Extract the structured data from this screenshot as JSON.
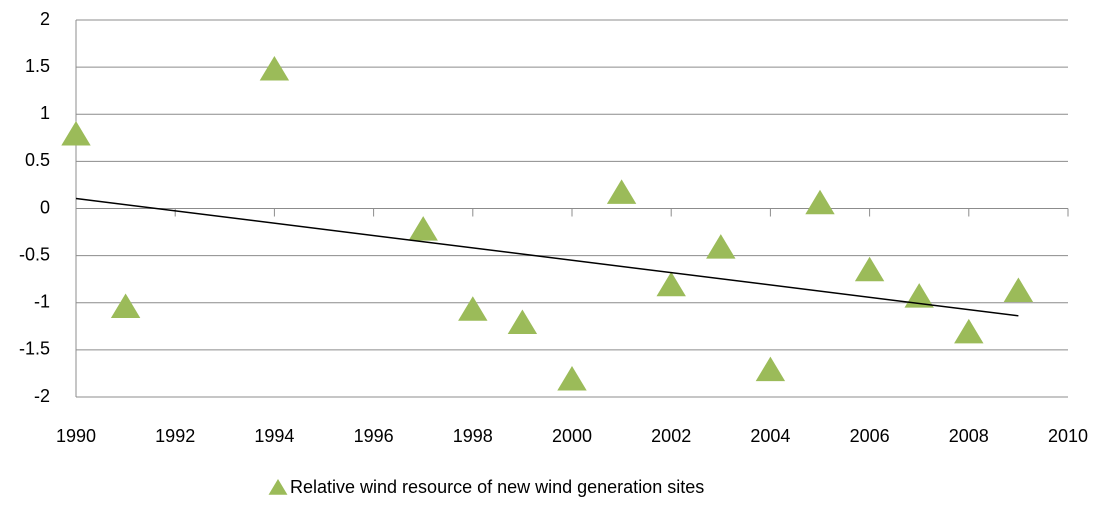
{
  "chart_data": {
    "type": "scatter",
    "x": [
      1990,
      1991,
      1994,
      1997,
      1998,
      1999,
      2000,
      2001,
      2002,
      2003,
      2004,
      2005,
      2006,
      2007,
      2008,
      2009
    ],
    "series": [
      {
        "name": "Relative wind resource of new wind generation sites",
        "color": "#9bbb59",
        "values": [
          0.78,
          -1.05,
          1.47,
          -0.23,
          -1.08,
          -1.22,
          -1.82,
          0.16,
          -0.82,
          -0.42,
          -1.72,
          0.05,
          -0.66,
          -0.94,
          -1.32,
          -0.88
        ]
      }
    ],
    "xlim": [
      1990,
      2010
    ],
    "xticks": [
      1990,
      1992,
      1994,
      1996,
      1998,
      2000,
      2002,
      2004,
      2006,
      2008,
      2010
    ],
    "ylim": [
      -2,
      2
    ],
    "yticks": [
      -2,
      -1.5,
      -1,
      -0.5,
      0,
      0.5,
      1,
      1.5,
      2
    ],
    "grid": true,
    "trendline": "linear",
    "trendline_color": "#000000",
    "legend": "bottom"
  }
}
